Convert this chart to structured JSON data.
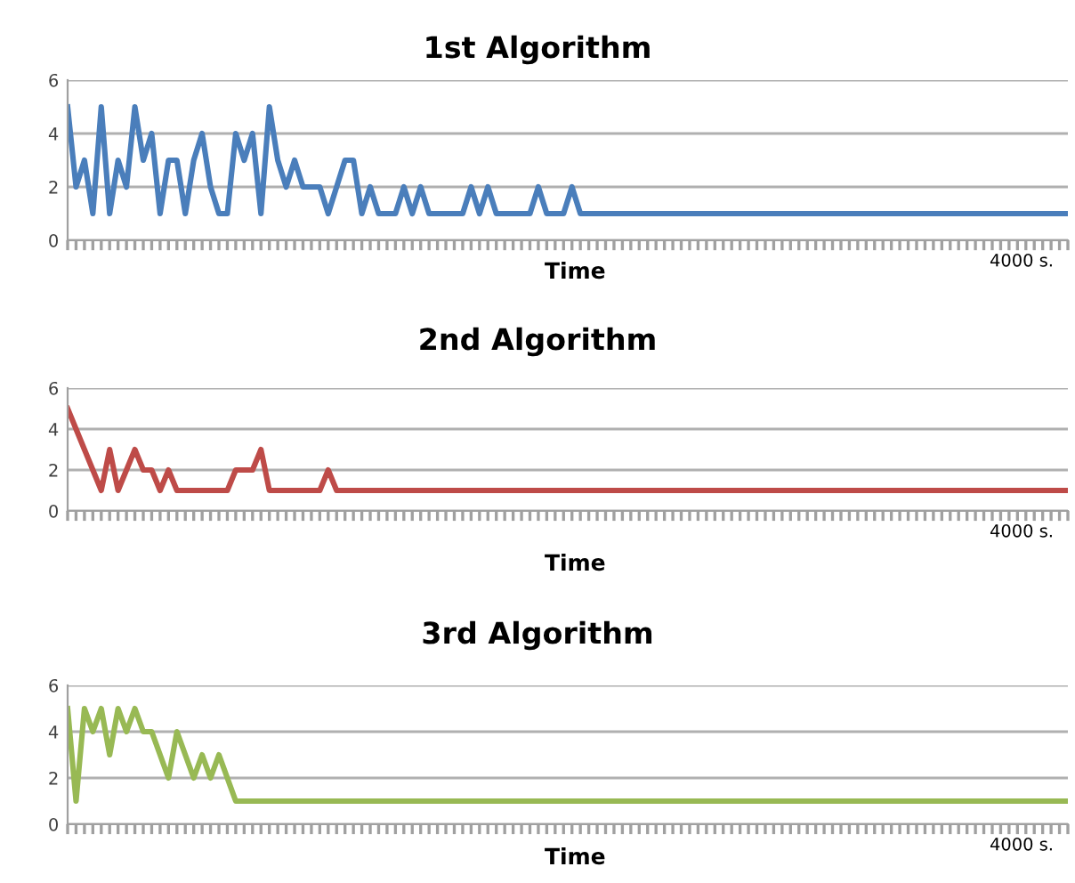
{
  "chart_data": [
    {
      "type": "line",
      "title": "1st Algorithm",
      "xlabel": "Time",
      "annotations": [
        "4000 s."
      ],
      "categories": [
        null,
        null,
        null,
        null,
        null,
        null,
        null,
        null,
        null,
        null,
        null,
        null,
        null,
        null,
        null,
        null,
        null,
        null,
        null,
        null,
        null,
        null,
        null,
        null,
        null,
        null,
        null,
        null,
        null,
        null,
        null,
        null,
        null,
        null,
        null,
        null,
        null,
        null,
        null,
        null,
        null,
        null,
        null,
        null,
        null,
        null,
        null,
        null,
        null,
        null,
        null,
        null,
        null,
        null,
        null,
        null,
        null,
        null,
        null,
        null,
        null,
        null,
        null,
        null,
        null,
        null,
        null,
        null,
        null,
        null,
        null,
        null,
        null,
        null,
        null,
        null,
        null,
        null,
        null,
        null,
        null,
        null,
        null,
        null,
        null,
        null,
        null,
        null,
        null,
        null,
        null,
        null,
        null,
        null,
        null,
        null,
        null,
        null,
        null,
        null,
        null,
        null,
        null,
        null,
        null,
        null,
        null,
        null,
        null,
        null,
        null,
        null,
        null,
        null,
        null,
        null,
        null,
        null,
        null,
        null
      ],
      "series": [
        {
          "color": "#4a7ebb",
          "values": [
            5,
            2,
            3,
            1,
            5,
            1,
            3,
            2,
            5,
            3,
            4,
            1,
            3,
            3,
            1,
            3,
            4,
            2,
            1,
            1,
            4,
            3,
            4,
            1,
            5,
            3,
            2,
            3,
            2,
            2,
            2,
            1,
            2,
            3,
            3,
            1,
            2,
            1,
            1,
            1,
            2,
            1,
            2,
            1,
            1,
            1,
            1,
            1,
            2,
            1,
            2,
            1,
            1,
            1,
            1,
            1,
            2,
            1,
            1,
            1,
            2,
            1,
            1,
            1,
            1,
            1,
            1,
            1,
            1,
            1,
            1,
            1,
            1,
            1,
            1,
            1,
            1,
            1,
            1,
            1,
            1,
            1,
            1,
            1,
            1,
            1,
            1,
            1,
            1,
            1,
            1,
            1,
            1,
            1,
            1,
            1,
            1,
            1,
            1,
            1,
            1,
            1,
            1,
            1,
            1,
            1,
            1,
            1,
            1,
            1,
            1,
            1,
            1,
            1,
            1,
            1,
            1,
            1,
            1,
            1
          ]
        }
      ],
      "ylim": [
        0,
        6
      ],
      "yticks": [
        0,
        2,
        4,
        6
      ],
      "grid": "y",
      "tick_labels": "y",
      "legend": false
    },
    {
      "type": "line",
      "title": "2nd Algorithm",
      "xlabel": "Time",
      "annotations": [
        "4000 s."
      ],
      "categories": [
        null,
        null,
        null,
        null,
        null,
        null,
        null,
        null,
        null,
        null,
        null,
        null,
        null,
        null,
        null,
        null,
        null,
        null,
        null,
        null,
        null,
        null,
        null,
        null,
        null,
        null,
        null,
        null,
        null,
        null,
        null,
        null,
        null,
        null,
        null,
        null,
        null,
        null,
        null,
        null,
        null,
        null,
        null,
        null,
        null,
        null,
        null,
        null,
        null,
        null,
        null,
        null,
        null,
        null,
        null,
        null,
        null,
        null,
        null,
        null,
        null,
        null,
        null,
        null,
        null,
        null,
        null,
        null,
        null,
        null,
        null,
        null,
        null,
        null,
        null,
        null,
        null,
        null,
        null,
        null,
        null,
        null,
        null,
        null,
        null,
        null,
        null,
        null,
        null,
        null,
        null,
        null,
        null,
        null,
        null,
        null,
        null,
        null,
        null,
        null,
        null,
        null,
        null,
        null,
        null,
        null,
        null,
        null,
        null,
        null,
        null,
        null,
        null,
        null,
        null,
        null,
        null,
        null,
        null,
        null
      ],
      "series": [
        {
          "color": "#be4b48",
          "values": [
            5,
            4,
            3,
            2,
            1,
            3,
            1,
            2,
            3,
            2,
            2,
            1,
            2,
            1,
            1,
            1,
            1,
            1,
            1,
            1,
            2,
            2,
            2,
            3,
            1,
            1,
            1,
            1,
            1,
            1,
            1,
            2,
            1,
            1,
            1,
            1,
            1,
            1,
            1,
            1,
            1,
            1,
            1,
            1,
            1,
            1,
            1,
            1,
            1,
            1,
            1,
            1,
            1,
            1,
            1,
            1,
            1,
            1,
            1,
            1,
            1,
            1,
            1,
            1,
            1,
            1,
            1,
            1,
            1,
            1,
            1,
            1,
            1,
            1,
            1,
            1,
            1,
            1,
            1,
            1,
            1,
            1,
            1,
            1,
            1,
            1,
            1,
            1,
            1,
            1,
            1,
            1,
            1,
            1,
            1,
            1,
            1,
            1,
            1,
            1,
            1,
            1,
            1,
            1,
            1,
            1,
            1,
            1,
            1,
            1,
            1,
            1,
            1,
            1,
            1,
            1,
            1,
            1,
            1,
            1
          ]
        }
      ],
      "ylim": [
        0,
        6
      ],
      "yticks": [
        0,
        2,
        4,
        6
      ],
      "grid": "y",
      "tick_labels": "y",
      "legend": false
    },
    {
      "type": "line",
      "title": "3rd Algorithm",
      "xlabel": "Time",
      "annotations": [
        "4000 s."
      ],
      "categories": [
        null,
        null,
        null,
        null,
        null,
        null,
        null,
        null,
        null,
        null,
        null,
        null,
        null,
        null,
        null,
        null,
        null,
        null,
        null,
        null,
        null,
        null,
        null,
        null,
        null,
        null,
        null,
        null,
        null,
        null,
        null,
        null,
        null,
        null,
        null,
        null,
        null,
        null,
        null,
        null,
        null,
        null,
        null,
        null,
        null,
        null,
        null,
        null,
        null,
        null,
        null,
        null,
        null,
        null,
        null,
        null,
        null,
        null,
        null,
        null,
        null,
        null,
        null,
        null,
        null,
        null,
        null,
        null,
        null,
        null,
        null,
        null,
        null,
        null,
        null,
        null,
        null,
        null,
        null,
        null,
        null,
        null,
        null,
        null,
        null,
        null,
        null,
        null,
        null,
        null,
        null,
        null,
        null,
        null,
        null,
        null,
        null,
        null,
        null,
        null,
        null,
        null,
        null,
        null,
        null,
        null,
        null,
        null,
        null,
        null,
        null,
        null,
        null,
        null,
        null,
        null,
        null,
        null,
        null,
        null
      ],
      "series": [
        {
          "color": "#98b954",
          "values": [
            5,
            1,
            5,
            4,
            5,
            3,
            5,
            4,
            5,
            4,
            4,
            3,
            2,
            4,
            3,
            2,
            3,
            2,
            3,
            2,
            1,
            1,
            1,
            1,
            1,
            1,
            1,
            1,
            1,
            1,
            1,
            1,
            1,
            1,
            1,
            1,
            1,
            1,
            1,
            1,
            1,
            1,
            1,
            1,
            1,
            1,
            1,
            1,
            1,
            1,
            1,
            1,
            1,
            1,
            1,
            1,
            1,
            1,
            1,
            1,
            1,
            1,
            1,
            1,
            1,
            1,
            1,
            1,
            1,
            1,
            1,
            1,
            1,
            1,
            1,
            1,
            1,
            1,
            1,
            1,
            1,
            1,
            1,
            1,
            1,
            1,
            1,
            1,
            1,
            1,
            1,
            1,
            1,
            1,
            1,
            1,
            1,
            1,
            1,
            1,
            1,
            1,
            1,
            1,
            1,
            1,
            1,
            1,
            1,
            1,
            1,
            1,
            1,
            1,
            1,
            1,
            1,
            1,
            1,
            1
          ]
        }
      ],
      "ylim": [
        0,
        6
      ],
      "yticks": [
        0,
        2,
        4,
        6
      ],
      "grid": "y",
      "tick_labels": "y",
      "legend": false
    }
  ]
}
